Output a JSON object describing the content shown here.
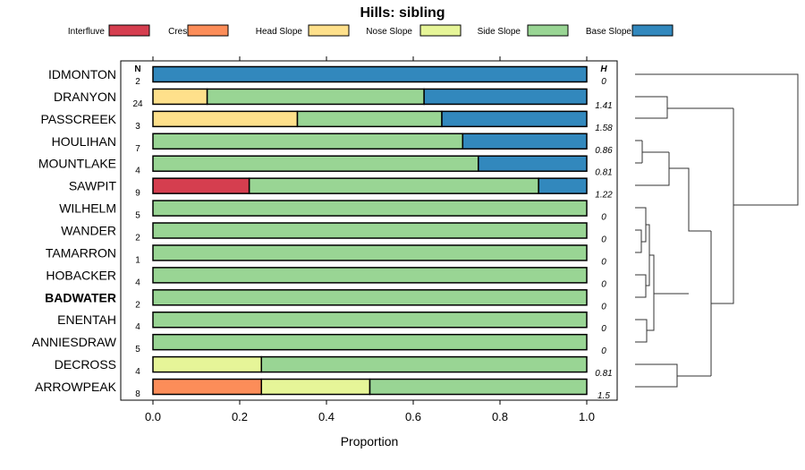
{
  "chart_data": {
    "type": "bar",
    "orientation": "horizontal",
    "stacked": true,
    "title": "Hills: sibling",
    "xlabel": "Proportion",
    "xlim": [
      0,
      1
    ],
    "xticks": [
      "0.0",
      "0.2",
      "0.4",
      "0.6",
      "0.8",
      "1.0"
    ],
    "xtick_values": [
      0,
      0.2,
      0.4,
      0.6,
      0.8,
      1.0
    ],
    "n_header": "N",
    "h_header": "H",
    "legend_position": "top",
    "legend": [
      {
        "name": "Interfluve",
        "color": "#D53E4F"
      },
      {
        "name": "Crest",
        "color": "#FC8D59"
      },
      {
        "name": "Head Slope",
        "color": "#FEE08B"
      },
      {
        "name": "Nose Slope",
        "color": "#E6F598"
      },
      {
        "name": "Side Slope",
        "color": "#99D594"
      },
      {
        "name": "Base Slope",
        "color": "#3288BD"
      }
    ],
    "highlighted_category": "BADWATER",
    "rows": [
      {
        "name": "IDMONTON",
        "n": "2",
        "h": "0",
        "values": [
          0,
          0,
          0,
          0,
          0,
          1
        ]
      },
      {
        "name": "DRANYON",
        "n": "24",
        "h": "1.41",
        "values": [
          0,
          0,
          0.125,
          0,
          0.5,
          0.375
        ]
      },
      {
        "name": "PASSCREEK",
        "n": "3",
        "h": "1.58",
        "values": [
          0,
          0,
          0.333,
          0,
          0.333,
          0.334
        ]
      },
      {
        "name": "HOULIHAN",
        "n": "7",
        "h": "0.86",
        "values": [
          0,
          0,
          0,
          0,
          0.714,
          0.286
        ]
      },
      {
        "name": "MOUNTLAKE",
        "n": "4",
        "h": "0.81",
        "values": [
          0,
          0,
          0,
          0,
          0.75,
          0.25
        ]
      },
      {
        "name": "SAWPIT",
        "n": "9",
        "h": "1.22",
        "values": [
          0.222,
          0,
          0,
          0,
          0.667,
          0.111
        ]
      },
      {
        "name": "WILHELM",
        "n": "5",
        "h": "0",
        "values": [
          0,
          0,
          0,
          0,
          1,
          0
        ]
      },
      {
        "name": "WANDER",
        "n": "2",
        "h": "0",
        "values": [
          0,
          0,
          0,
          0,
          1,
          0
        ]
      },
      {
        "name": "TAMARRON",
        "n": "1",
        "h": "0",
        "values": [
          0,
          0,
          0,
          0,
          1,
          0
        ]
      },
      {
        "name": "HOBACKER",
        "n": "4",
        "h": "0",
        "values": [
          0,
          0,
          0,
          0,
          1,
          0
        ]
      },
      {
        "name": "BADWATER",
        "n": "2",
        "h": "0",
        "values": [
          0,
          0,
          0,
          0,
          1,
          0
        ]
      },
      {
        "name": "ENENTAH",
        "n": "4",
        "h": "0",
        "values": [
          0,
          0,
          0,
          0,
          1,
          0
        ]
      },
      {
        "name": "ANNIESDRAW",
        "n": "5",
        "h": "0",
        "values": [
          0,
          0,
          0,
          0,
          1,
          0
        ]
      },
      {
        "name": "DECROSS",
        "n": "4",
        "h": "0.81",
        "values": [
          0,
          0,
          0,
          0.25,
          0.75,
          0
        ]
      },
      {
        "name": "ARROWPEAK",
        "n": "8",
        "h": "1.5",
        "values": [
          0,
          0.25,
          0,
          0.25,
          0.5,
          0
        ]
      }
    ]
  }
}
